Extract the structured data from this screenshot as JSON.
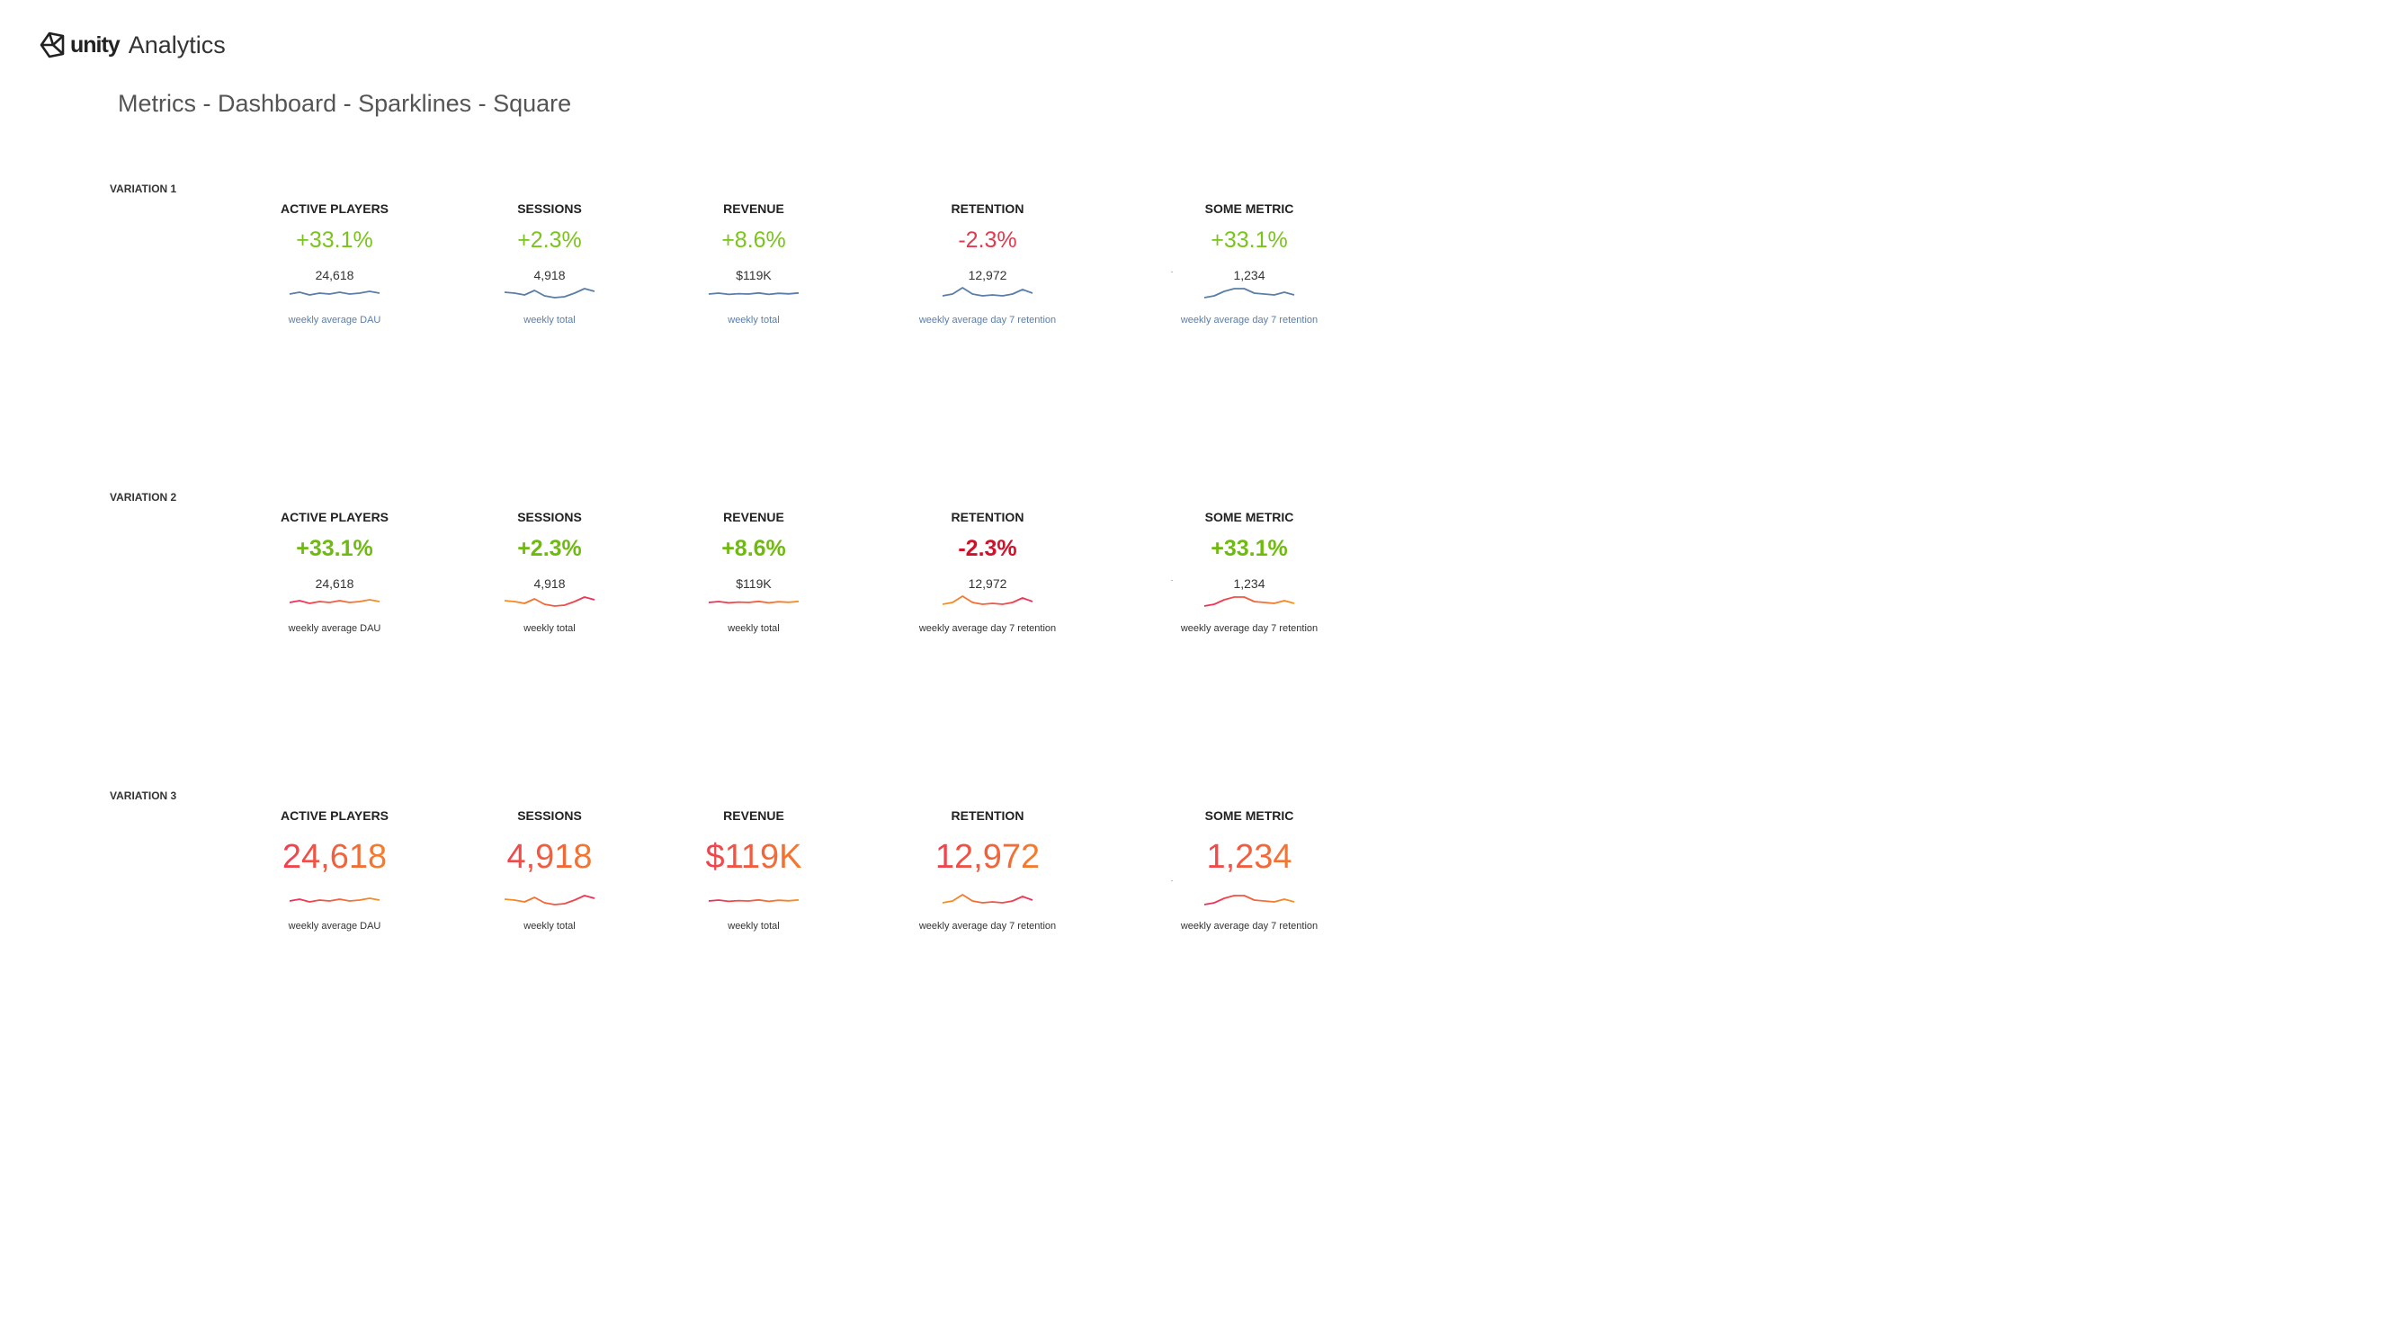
{
  "header": {
    "brand": "unity",
    "product": "Analytics",
    "page_title": "Metrics - Dashboard - Sparklines - Square"
  },
  "colors": {
    "positive": "#7ac41c",
    "positive_bold": "#6fba0f",
    "negative": "#e23a4e",
    "negative_bold": "#d40f28",
    "spark_blue": "#5a7ea8",
    "gradient_orange": "#f7931e",
    "gradient_red": "#ee2a5c",
    "caption_blue": "#5a7ea8",
    "caption_dark": "#333333"
  },
  "metrics": [
    {
      "title": "ACTIVE PLAYERS",
      "value": "24,618",
      "delta": "+33.1%",
      "caption": "weekly average DAU",
      "trend": "up"
    },
    {
      "title": "SESSIONS",
      "value": "4,918",
      "delta": "+2.3%",
      "caption": "weekly total",
      "trend": "up"
    },
    {
      "title": "REVENUE",
      "value": "$119K",
      "delta": "+8.6%",
      "caption": "weekly total",
      "trend": "up"
    },
    {
      "title": "RETENTION",
      "value": "12,972",
      "delta": "-2.3%",
      "caption": "weekly average day 7 retention",
      "trend": "down"
    },
    {
      "title": "SOME METRIC",
      "value": "1,234",
      "delta": "+33.1%",
      "caption": "weekly average day 7 retention",
      "trend": "up"
    }
  ],
  "sparklines": [
    [
      5,
      6,
      4.5,
      5.5,
      5,
      6,
      5,
      5.5,
      6.5,
      5.5
    ],
    [
      6,
      5.5,
      4.5,
      7,
      4,
      3,
      3.5,
      5.5,
      8,
      6.5
    ],
    [
      5,
      5.5,
      4.8,
      5.2,
      5,
      5.6,
      4.8,
      5.4,
      5.1,
      5.6
    ],
    [
      4,
      5,
      8.5,
      5,
      4,
      4.5,
      4,
      5,
      7.5,
      5.5
    ],
    [
      3,
      4,
      6.5,
      8,
      8,
      5.5,
      5,
      4.5,
      6,
      4.5
    ]
  ],
  "variations": [
    {
      "label": "VARIATION 1",
      "style": "light"
    },
    {
      "label": "VARIATION 2",
      "style": "bold"
    },
    {
      "label": "VARIATION 3",
      "style": "big"
    }
  ]
}
